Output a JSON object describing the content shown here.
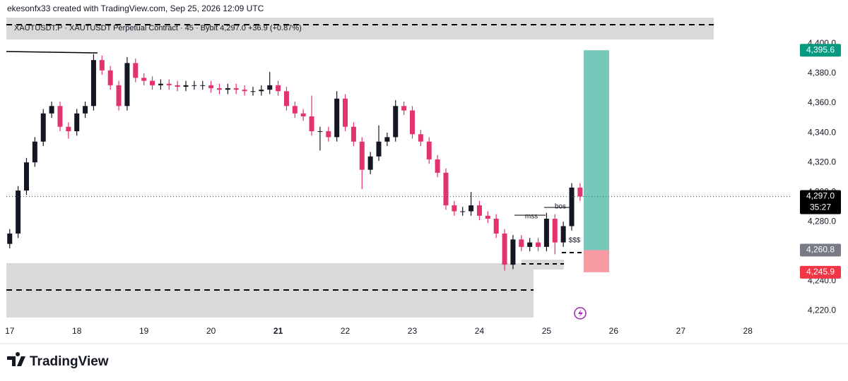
{
  "attribution": "ekesonfx33 created with TradingView.com, Sep 25, 2026 12:09 UTC",
  "brand": "TradingView",
  "chart_data": {
    "type": "candlestick",
    "title": "XAUTUSDT.P · XAUTUSDT Perpetual Contract · 45 · Bybit  4,297.0  +36.9 (+0.87%)",
    "x": [
      17,
      17.125,
      17.25,
      17.375,
      17.5,
      17.625,
      17.75,
      17.875,
      18,
      18.125,
      18.25,
      18.375,
      18.5,
      18.625,
      18.75,
      18.875,
      19,
      19.125,
      19.25,
      19.375,
      19.5,
      19.625,
      19.75,
      19.875,
      20,
      20.125,
      20.25,
      20.375,
      20.5,
      20.625,
      20.75,
      20.875,
      21,
      21.125,
      21.25,
      21.375,
      21.5,
      21.625,
      21.75,
      21.875,
      22,
      22.125,
      22.25,
      22.375,
      22.5,
      22.625,
      22.75,
      22.875,
      23,
      23.125,
      23.25,
      23.375,
      23.5,
      23.625,
      23.75,
      23.875,
      24,
      24.125,
      24.25,
      24.375,
      24.5,
      24.625,
      24.75,
      24.875,
      25,
      25.125,
      25.25,
      25.375,
      25.5
    ],
    "open": [
      4265,
      4272,
      4301,
      4320,
      4334,
      4353,
      4358,
      4344,
      4341,
      4353,
      4358,
      4389,
      4382,
      4372,
      4358,
      4387,
      4377,
      4375,
      4372,
      4373,
      4372,
      4371,
      4372,
      4372,
      4372,
      4370,
      4369,
      4370,
      4369,
      4368,
      4368,
      4369,
      4372,
      4368,
      4358,
      4353,
      4351,
      4341,
      4341,
      4337,
      4363,
      4344,
      4334,
      4315,
      4324,
      4334,
      4337,
      4358,
      4355,
      4339,
      4334,
      4322,
      4313,
      4291,
      4287,
      4287,
      4291,
      4284,
      4282,
      4272,
      4251,
      4268,
      4263,
      4266,
      4263,
      4282,
      4266,
      4277,
      4303
    ],
    "high": [
      4275,
      4304,
      4323,
      4337,
      4356,
      4361,
      4361,
      4347,
      4356,
      4361,
      4393,
      4392,
      4385,
      4375,
      4391,
      4390,
      4380,
      4378,
      4376,
      4376,
      4375,
      4375,
      4375,
      4375,
      4375,
      4373,
      4373,
      4373,
      4372,
      4371,
      4372,
      4381,
      4375,
      4371,
      4361,
      4356,
      4365,
      4344,
      4344,
      4368,
      4366,
      4347,
      4337,
      4327,
      4345,
      4340,
      4362,
      4361,
      4358,
      4342,
      4337,
      4325,
      4316,
      4294,
      4290,
      4300,
      4294,
      4287,
      4285,
      4275,
      4271,
      4271,
      4269,
      4269,
      4286,
      4285,
      4280,
      4306,
      4306
    ],
    "low": [
      4262,
      4269,
      4298,
      4317,
      4331,
      4350,
      4341,
      4336,
      4338,
      4350,
      4355,
      4379,
      4369,
      4355,
      4355,
      4374,
      4372,
      4369,
      4369,
      4369,
      4368,
      4368,
      4369,
      4369,
      4367,
      4366,
      4366,
      4366,
      4365,
      4365,
      4365,
      4366,
      4365,
      4355,
      4350,
      4348,
      4338,
      4328,
      4334,
      4334,
      4341,
      4331,
      4302,
      4312,
      4321,
      4331,
      4334,
      4352,
      4336,
      4331,
      4319,
      4310,
      4288,
      4284,
      4284,
      4284,
      4281,
      4279,
      4269,
      4247,
      4248,
      4260,
      4260,
      4260,
      4260,
      4258,
      4263,
      4274,
      4294
    ],
    "close": [
      4272,
      4301,
      4320,
      4334,
      4353,
      4358,
      4344,
      4341,
      4353,
      4358,
      4389,
      4382,
      4372,
      4358,
      4387,
      4377,
      4375,
      4372,
      4373,
      4372,
      4371,
      4372,
      4372,
      4372,
      4370,
      4369,
      4370,
      4369,
      4368,
      4368,
      4369,
      4372,
      4368,
      4358,
      4353,
      4351,
      4341,
      4341,
      4337,
      4363,
      4344,
      4334,
      4315,
      4324,
      4334,
      4337,
      4358,
      4355,
      4339,
      4334,
      4322,
      4313,
      4291,
      4287,
      4287,
      4291,
      4284,
      4282,
      4272,
      4251,
      4268,
      4263,
      4266,
      4263,
      4282,
      4266,
      4277,
      4303,
      4297
    ],
    "up_color": "#131722",
    "down_color": "#e2336b",
    "xlim": [
      16.95,
      28.65
    ],
    "xticks": [
      17,
      18,
      19,
      20,
      21,
      22,
      23,
      24,
      25,
      26,
      27,
      28
    ],
    "bold_xtick": 21,
    "ylim": [
      4213,
      4429.5
    ],
    "yticks": [
      {
        "value": 4220,
        "label": "4,220.0"
      },
      {
        "value": 4240,
        "label": "4,240.0"
      },
      {
        "value": 4280,
        "label": "4,280.0"
      },
      {
        "value": 4300,
        "label": "4,300.0"
      },
      {
        "value": 4320,
        "label": "4,320.0"
      },
      {
        "value": 4340,
        "label": "4,340.0"
      },
      {
        "value": 4360,
        "label": "4,360.0"
      },
      {
        "value": 4380,
        "label": "4,380.0"
      },
      {
        "value": 4400,
        "label": "4,400.0"
      }
    ],
    "price_tags": [
      {
        "value": 4395.6,
        "label": "4,395.6",
        "color": "#089981"
      },
      {
        "value": 4297.0,
        "label": "4,297.0",
        "color": "#000000",
        "countdown": "35:27"
      },
      {
        "value": 4260.8,
        "label": "4,260.8",
        "color": "#787b86"
      },
      {
        "value": 4245.9,
        "label": "4,245.9",
        "color": "#f23645"
      }
    ],
    "annotations": [
      "mss",
      "bos",
      "$$$"
    ]
  }
}
